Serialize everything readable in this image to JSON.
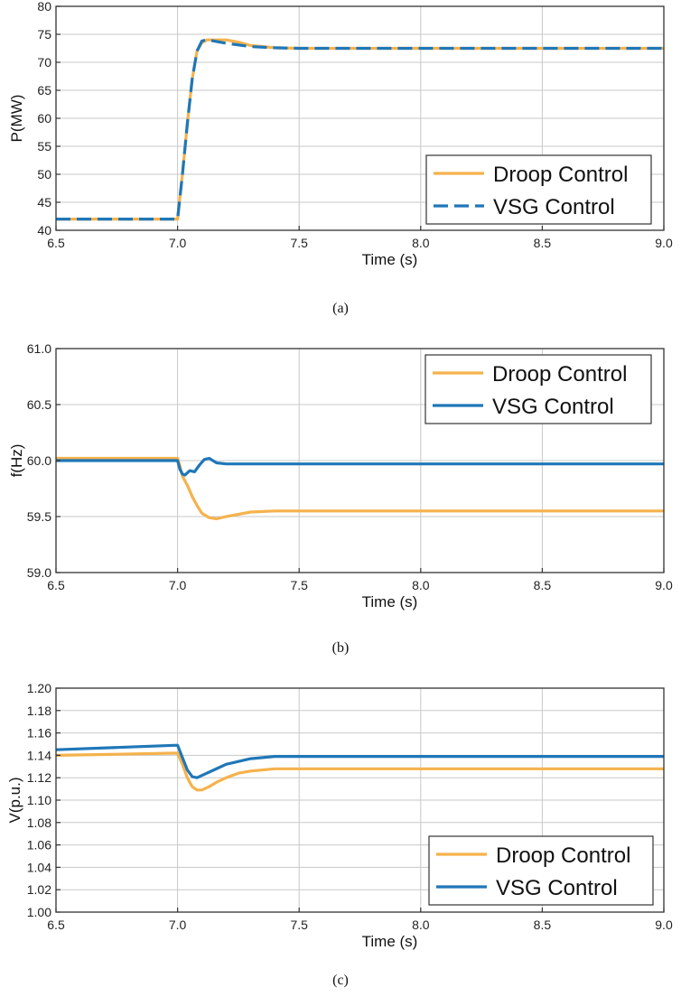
{
  "colors": {
    "droop": "#F5B24C",
    "vsg": "#1F77B8",
    "grid": "#C8C8C8",
    "axis": "#333333"
  },
  "chart_data": [
    {
      "type": "line",
      "panel": "a",
      "caption": "(a)",
      "xlabel": "Time (s)",
      "ylabel": "P(MW)",
      "xlim": [
        6.5,
        9.0
      ],
      "ylim": [
        40,
        80
      ],
      "xticks": [
        6.5,
        7.0,
        7.5,
        8.0,
        8.5,
        9.0
      ],
      "xtick_labels": [
        "6.5",
        "7.0",
        "7.5",
        "8.0",
        "8.5",
        "9.0"
      ],
      "yticks": [
        40,
        45,
        50,
        55,
        60,
        65,
        70,
        75,
        80
      ],
      "ytick_labels": [
        "40",
        "45",
        "50",
        "55",
        "60",
        "65",
        "70",
        "75",
        "80"
      ],
      "grid": true,
      "legend_position": "bottom-right",
      "series": [
        {
          "name": "Droop Control",
          "style": "solid",
          "x": [
            6.5,
            7.0,
            7.02,
            7.04,
            7.06,
            7.08,
            7.1,
            7.12,
            7.15,
            7.2,
            7.25,
            7.3,
            7.4,
            7.5,
            8.0,
            8.5,
            9.0
          ],
          "y": [
            42,
            42,
            50,
            59,
            67,
            72,
            73.5,
            74,
            74,
            74,
            73.6,
            73,
            72.6,
            72.5,
            72.5,
            72.5,
            72.5
          ]
        },
        {
          "name": "VSG Control",
          "style": "dashed",
          "x": [
            6.5,
            7.0,
            7.02,
            7.04,
            7.06,
            7.08,
            7.1,
            7.12,
            7.15,
            7.2,
            7.3,
            7.4,
            7.5,
            8.0,
            8.5,
            9.0
          ],
          "y": [
            42,
            42,
            50,
            59,
            67,
            72,
            73.8,
            74,
            73.8,
            73.4,
            72.8,
            72.6,
            72.5,
            72.5,
            72.5,
            72.5
          ]
        }
      ]
    },
    {
      "type": "line",
      "panel": "b",
      "caption": "(b)",
      "xlabel": "Time (s)",
      "ylabel": "f(Hz)",
      "xlim": [
        6.5,
        9.0
      ],
      "ylim": [
        59.0,
        61.0
      ],
      "xticks": [
        6.5,
        7.0,
        7.5,
        8.0,
        8.5,
        9.0
      ],
      "xtick_labels": [
        "6.5",
        "7.0",
        "7.5",
        "8.0",
        "8.5",
        "9.0"
      ],
      "yticks": [
        59.0,
        59.5,
        60.0,
        60.5,
        61.0
      ],
      "ytick_labels": [
        "59.0",
        "59.5",
        "60.0",
        "60.5",
        "61.0"
      ],
      "grid": true,
      "legend_position": "top-right",
      "series": [
        {
          "name": "Droop Control",
          "style": "solid",
          "x": [
            6.5,
            7.0,
            7.01,
            7.02,
            7.04,
            7.06,
            7.08,
            7.1,
            7.13,
            7.16,
            7.2,
            7.3,
            7.4,
            7.5,
            8.0,
            8.5,
            9.0
          ],
          "y": [
            60.02,
            60.02,
            59.95,
            59.86,
            59.78,
            59.68,
            59.6,
            59.53,
            59.49,
            59.48,
            59.5,
            59.54,
            59.55,
            59.55,
            59.55,
            59.55,
            59.55
          ]
        },
        {
          "name": "VSG Control",
          "style": "solid",
          "x": [
            6.5,
            7.0,
            7.01,
            7.02,
            7.03,
            7.05,
            7.07,
            7.09,
            7.11,
            7.13,
            7.16,
            7.2,
            7.5,
            8.0,
            8.5,
            9.0
          ],
          "y": [
            60.0,
            60.0,
            59.92,
            59.88,
            59.87,
            59.91,
            59.9,
            59.96,
            60.01,
            60.02,
            59.98,
            59.97,
            59.97,
            59.97,
            59.97,
            59.97
          ]
        }
      ]
    },
    {
      "type": "line",
      "panel": "c",
      "caption": "(c)",
      "xlabel": "Time (s)",
      "ylabel": "V(p.u.)",
      "xlim": [
        6.5,
        9.0
      ],
      "ylim": [
        1.0,
        1.2
      ],
      "xticks": [
        6.5,
        7.0,
        7.5,
        8.0,
        8.5,
        9.0
      ],
      "xtick_labels": [
        "6.5",
        "7.0",
        "7.5",
        "8.0",
        "8.5",
        "9.0"
      ],
      "yticks": [
        1.0,
        1.02,
        1.04,
        1.06,
        1.08,
        1.1,
        1.12,
        1.14,
        1.16,
        1.18,
        1.2
      ],
      "ytick_labels": [
        "1.00",
        "1.02",
        "1.04",
        "1.06",
        "1.08",
        "1.10",
        "1.12",
        "1.14",
        "1.16",
        "1.18",
        "1.20"
      ],
      "grid": true,
      "legend_position": "bottom-right",
      "series": [
        {
          "name": "Droop Control",
          "style": "solid",
          "x": [
            6.5,
            6.75,
            7.0,
            7.02,
            7.04,
            7.06,
            7.08,
            7.1,
            7.13,
            7.16,
            7.2,
            7.25,
            7.3,
            7.4,
            7.5,
            8.0,
            8.5,
            9.0
          ],
          "y": [
            1.14,
            1.141,
            1.142,
            1.132,
            1.12,
            1.112,
            1.109,
            1.109,
            1.112,
            1.116,
            1.12,
            1.124,
            1.126,
            1.128,
            1.128,
            1.128,
            1.128,
            1.128
          ]
        },
        {
          "name": "VSG Control",
          "style": "solid",
          "x": [
            6.5,
            6.75,
            7.0,
            7.02,
            7.04,
            7.06,
            7.08,
            7.1,
            7.15,
            7.2,
            7.3,
            7.4,
            7.5,
            8.0,
            8.5,
            9.0
          ],
          "y": [
            1.145,
            1.147,
            1.149,
            1.138,
            1.127,
            1.121,
            1.12,
            1.122,
            1.127,
            1.132,
            1.137,
            1.139,
            1.139,
            1.139,
            1.139,
            1.139
          ]
        }
      ]
    }
  ]
}
